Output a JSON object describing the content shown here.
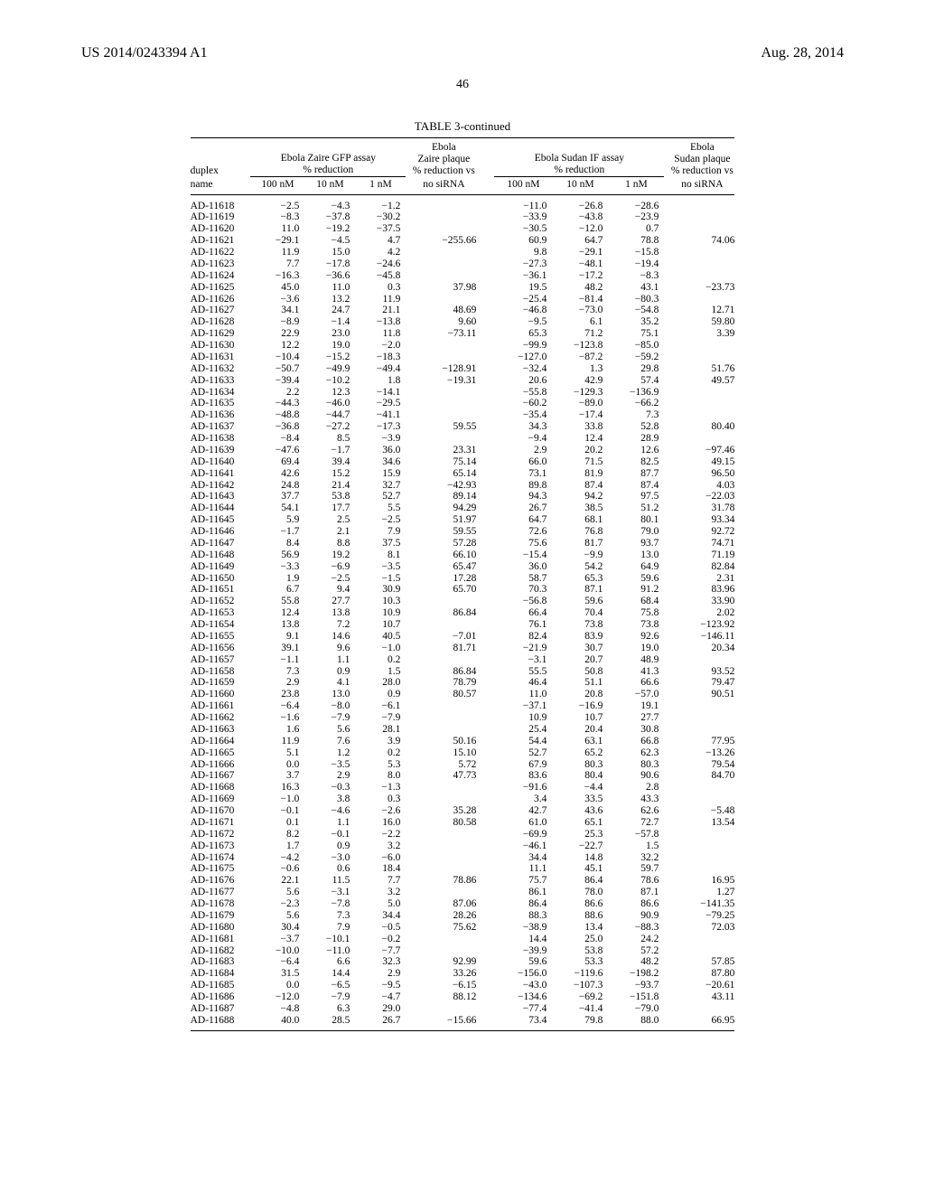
{
  "header": {
    "left": "US 2014/0243394 A1",
    "right": "Aug. 28, 2014",
    "pageNumber": "46"
  },
  "table": {
    "title": "TABLE 3-continued",
    "columns": {
      "duplex": "duplex",
      "name": "name",
      "group1_top": "Ebola Zaire GFP assay",
      "group1_bottom": "% reduction",
      "zaire_top": "Ebola",
      "zaire_mid": "Zaire plaque",
      "zaire_bot": "% reduction vs",
      "group2_top": "Ebola Sudan IF assay",
      "group2_bottom": "% reduction",
      "sudan_top": "Ebola",
      "sudan_mid": "Sudan plaque",
      "sudan_bot": "% reduction vs",
      "c100": "100 nM",
      "c10": "10 nM",
      "c1": "1 nM",
      "noSiRNA": "no siRNA"
    },
    "rows": [
      [
        "AD-11618",
        "−2.5",
        "−4.3",
        "−1.2",
        "",
        "−11.0",
        "−26.8",
        "−28.6",
        ""
      ],
      [
        "AD-11619",
        "−8.3",
        "−37.8",
        "−30.2",
        "",
        "−33.9",
        "−43.8",
        "−23.9",
        ""
      ],
      [
        "AD-11620",
        "11.0",
        "−19.2",
        "−37.5",
        "",
        "−30.5",
        "−12.0",
        "0.7",
        ""
      ],
      [
        "AD-11621",
        "−29.1",
        "−4.5",
        "4.7",
        "−255.66",
        "60.9",
        "64.7",
        "78.8",
        "74.06"
      ],
      [
        "AD-11622",
        "11.9",
        "15.0",
        "4.2",
        "",
        "9.8",
        "−29.1",
        "−15.8",
        ""
      ],
      [
        "AD-11623",
        "7.7",
        "−17.8",
        "−24.6",
        "",
        "−27.3",
        "−48.1",
        "−19.4",
        ""
      ],
      [
        "AD-11624",
        "−16.3",
        "−36.6",
        "−45.8",
        "",
        "−36.1",
        "−17.2",
        "−8.3",
        ""
      ],
      [
        "AD-11625",
        "45.0",
        "11.0",
        "0.3",
        "37.98",
        "19.5",
        "48.2",
        "43.1",
        "−23.73"
      ],
      [
        "AD-11626",
        "−3.6",
        "13.2",
        "11.9",
        "",
        "−25.4",
        "−81.4",
        "−80.3",
        ""
      ],
      [
        "AD-11627",
        "34.1",
        "24.7",
        "21.1",
        "48.69",
        "−46.8",
        "−73.0",
        "−54.8",
        "12.71"
      ],
      [
        "AD-11628",
        "−8.9",
        "−1.4",
        "−13.8",
        "9.60",
        "−9.5",
        "6.1",
        "35.2",
        "59.80"
      ],
      [
        "AD-11629",
        "22.9",
        "23.0",
        "11.8",
        "−73.11",
        "65.3",
        "71.2",
        "75.1",
        "3.39"
      ],
      [
        "AD-11630",
        "12.2",
        "19.0",
        "−2.0",
        "",
        "−99.9",
        "−123.8",
        "−85.0",
        ""
      ],
      [
        "AD-11631",
        "−10.4",
        "−15.2",
        "−18.3",
        "",
        "−127.0",
        "−87.2",
        "−59.2",
        ""
      ],
      [
        "AD-11632",
        "−50.7",
        "−49.9",
        "−49.4",
        "−128.91",
        "−32.4",
        "1.3",
        "29.8",
        "51.76"
      ],
      [
        "AD-11633",
        "−39.4",
        "−10.2",
        "1.8",
        "−19.31",
        "20.6",
        "42.9",
        "57.4",
        "49.57"
      ],
      [
        "AD-11634",
        "2.2",
        "12.3",
        "−14.1",
        "",
        "−55.8",
        "−129.3",
        "−136.9",
        ""
      ],
      [
        "AD-11635",
        "−44.3",
        "−46.0",
        "−29.5",
        "",
        "−60.2",
        "−89.0",
        "−66.2",
        ""
      ],
      [
        "AD-11636",
        "−48.8",
        "−44.7",
        "−41.1",
        "",
        "−35.4",
        "−17.4",
        "7.3",
        ""
      ],
      [
        "AD-11637",
        "−36.8",
        "−27.2",
        "−17.3",
        "59.55",
        "34.3",
        "33.8",
        "52.8",
        "80.40"
      ],
      [
        "AD-11638",
        "−8.4",
        "8.5",
        "−3.9",
        "",
        "−9.4",
        "12.4",
        "28.9",
        ""
      ],
      [
        "AD-11639",
        "−47.6",
        "−1.7",
        "36.0",
        "23.31",
        "2.9",
        "20.2",
        "12.6",
        "−97.46"
      ],
      [
        "AD-11640",
        "69.4",
        "39.4",
        "34.6",
        "75.14",
        "66.0",
        "71.5",
        "82.5",
        "49.15"
      ],
      [
        "AD-11641",
        "42.6",
        "15.2",
        "15.9",
        "65.14",
        "73.1",
        "81.9",
        "87.7",
        "96.50"
      ],
      [
        "AD-11642",
        "24.8",
        "21.4",
        "32.7",
        "−42.93",
        "89.8",
        "87.4",
        "87.4",
        "4.03"
      ],
      [
        "AD-11643",
        "37.7",
        "53.8",
        "52.7",
        "89.14",
        "94.3",
        "94.2",
        "97.5",
        "−22.03"
      ],
      [
        "AD-11644",
        "54.1",
        "17.7",
        "5.5",
        "94.29",
        "26.7",
        "38.5",
        "51.2",
        "31.78"
      ],
      [
        "AD-11645",
        "5.9",
        "2.5",
        "−2.5",
        "51.97",
        "64.7",
        "68.1",
        "80.1",
        "93.34"
      ],
      [
        "AD-11646",
        "−1.7",
        "2.1",
        "7.9",
        "59.55",
        "72.6",
        "76.8",
        "79.0",
        "92.72"
      ],
      [
        "AD-11647",
        "8.4",
        "8.8",
        "37.5",
        "57.28",
        "75.6",
        "81.7",
        "93.7",
        "74.71"
      ],
      [
        "AD-11648",
        "56.9",
        "19.2",
        "8.1",
        "66.10",
        "−15.4",
        "−9.9",
        "13.0",
        "71.19"
      ],
      [
        "AD-11649",
        "−3.3",
        "−6.9",
        "−3.5",
        "65.47",
        "36.0",
        "54.2",
        "64.9",
        "82.84"
      ],
      [
        "AD-11650",
        "1.9",
        "−2.5",
        "−1.5",
        "17.28",
        "58.7",
        "65.3",
        "59.6",
        "2.31"
      ],
      [
        "AD-11651",
        "6.7",
        "9.4",
        "30.9",
        "65.70",
        "70.3",
        "87.1",
        "91.2",
        "83.96"
      ],
      [
        "AD-11652",
        "55.8",
        "27.7",
        "10.3",
        "",
        "−56.8",
        "59.6",
        "68.4",
        "33.90"
      ],
      [
        "AD-11653",
        "12.4",
        "13.8",
        "10.9",
        "86.84",
        "66.4",
        "70.4",
        "75.8",
        "2.02"
      ],
      [
        "AD-11654",
        "13.8",
        "7.2",
        "10.7",
        "",
        "76.1",
        "73.8",
        "73.8",
        "−123.92"
      ],
      [
        "AD-11655",
        "9.1",
        "14.6",
        "40.5",
        "−7.01",
        "82.4",
        "83.9",
        "92.6",
        "−146.11"
      ],
      [
        "AD-11656",
        "39.1",
        "9.6",
        "−1.0",
        "81.71",
        "−21.9",
        "30.7",
        "19.0",
        "20.34"
      ],
      [
        "AD-11657",
        "−1.1",
        "1.1",
        "0.2",
        "",
        "−3.1",
        "20.7",
        "48.9",
        ""
      ],
      [
        "AD-11658",
        "7.3",
        "0.9",
        "1.5",
        "86.84",
        "55.5",
        "50.8",
        "41.3",
        "93.52"
      ],
      [
        "AD-11659",
        "2.9",
        "4.1",
        "28.0",
        "78.79",
        "46.4",
        "51.1",
        "66.6",
        "79.47"
      ],
      [
        "AD-11660",
        "23.8",
        "13.0",
        "0.9",
        "80.57",
        "11.0",
        "20.8",
        "−57.0",
        "90.51"
      ],
      [
        "AD-11661",
        "−6.4",
        "−8.0",
        "−6.1",
        "",
        "−37.1",
        "−16.9",
        "19.1",
        ""
      ],
      [
        "AD-11662",
        "−1.6",
        "−7.9",
        "−7.9",
        "",
        "10.9",
        "10.7",
        "27.7",
        ""
      ],
      [
        "AD-11663",
        "1.6",
        "5.6",
        "28.1",
        "",
        "25.4",
        "20.4",
        "30.8",
        ""
      ],
      [
        "AD-11664",
        "11.9",
        "7.6",
        "3.9",
        "50.16",
        "54.4",
        "63.1",
        "66.8",
        "77.95"
      ],
      [
        "AD-11665",
        "5.1",
        "1.2",
        "0.2",
        "15.10",
        "52.7",
        "65.2",
        "62.3",
        "−13.26"
      ],
      [
        "AD-11666",
        "0.0",
        "−3.5",
        "5.3",
        "5.72",
        "67.9",
        "80.3",
        "80.3",
        "79.54"
      ],
      [
        "AD-11667",
        "3.7",
        "2.9",
        "8.0",
        "47.73",
        "83.6",
        "80.4",
        "90.6",
        "84.70"
      ],
      [
        "AD-11668",
        "16.3",
        "−0.3",
        "−1.3",
        "",
        "−91.6",
        "−4.4",
        "2.8",
        ""
      ],
      [
        "AD-11669",
        "−1.0",
        "3.8",
        "0.3",
        "",
        "3.4",
        "33.5",
        "43.3",
        ""
      ],
      [
        "AD-11670",
        "−0.1",
        "−4.6",
        "−2.6",
        "35.28",
        "42.7",
        "43.6",
        "62.6",
        "−5.48"
      ],
      [
        "AD-11671",
        "0.1",
        "1.1",
        "16.0",
        "80.58",
        "61.0",
        "65.1",
        "72.7",
        "13.54"
      ],
      [
        "AD-11672",
        "8.2",
        "−0.1",
        "−2.2",
        "",
        "−69.9",
        "25.3",
        "−57.8",
        ""
      ],
      [
        "AD-11673",
        "1.7",
        "0.9",
        "3.2",
        "",
        "−46.1",
        "−22.7",
        "1.5",
        ""
      ],
      [
        "AD-11674",
        "−4.2",
        "−3.0",
        "−6.0",
        "",
        "34.4",
        "14.8",
        "32.2",
        ""
      ],
      [
        "AD-11675",
        "−0.6",
        "0.6",
        "18.4",
        "",
        "11.1",
        "45.1",
        "59.7",
        ""
      ],
      [
        "AD-11676",
        "22.1",
        "11.5",
        "7.7",
        "78.86",
        "75.7",
        "86.4",
        "78.6",
        "16.95"
      ],
      [
        "AD-11677",
        "5.6",
        "−3.1",
        "3.2",
        "",
        "86.1",
        "78.0",
        "87.1",
        "1.27"
      ],
      [
        "AD-11678",
        "−2.3",
        "−7.8",
        "5.0",
        "87.06",
        "86.4",
        "86.6",
        "86.6",
        "−141.35"
      ],
      [
        "AD-11679",
        "5.6",
        "7.3",
        "34.4",
        "28.26",
        "88.3",
        "88.6",
        "90.9",
        "−79.25"
      ],
      [
        "AD-11680",
        "30.4",
        "7.9",
        "−0.5",
        "75.62",
        "−38.9",
        "13.4",
        "−88.3",
        "72.03"
      ],
      [
        "AD-11681",
        "−3.7",
        "−10.1",
        "−0.2",
        "",
        "14.4",
        "25.0",
        "24.2",
        ""
      ],
      [
        "AD-11682",
        "−10.0",
        "−11.0",
        "−7.7",
        "",
        "−39.9",
        "53.8",
        "57.2",
        ""
      ],
      [
        "AD-11683",
        "−6.4",
        "6.6",
        "32.3",
        "92.99",
        "59.6",
        "53.3",
        "48.2",
        "57.85"
      ],
      [
        "AD-11684",
        "31.5",
        "14.4",
        "2.9",
        "33.26",
        "−156.0",
        "−119.6",
        "−198.2",
        "87.80"
      ],
      [
        "AD-11685",
        "0.0",
        "−6.5",
        "−9.5",
        "−6.15",
        "−43.0",
        "−107.3",
        "−93.7",
        "−20.61"
      ],
      [
        "AD-11686",
        "−12.0",
        "−7.9",
        "−4.7",
        "88.12",
        "−134.6",
        "−69.2",
        "−151.8",
        "43.11"
      ],
      [
        "AD-11687",
        "−4.8",
        "6.3",
        "29.0",
        "",
        "−77.4",
        "−41.4",
        "−79.0",
        ""
      ],
      [
        "AD-11688",
        "40.0",
        "28.5",
        "26.7",
        "−15.66",
        "73.4",
        "79.8",
        "88.0",
        "66.95"
      ]
    ]
  }
}
